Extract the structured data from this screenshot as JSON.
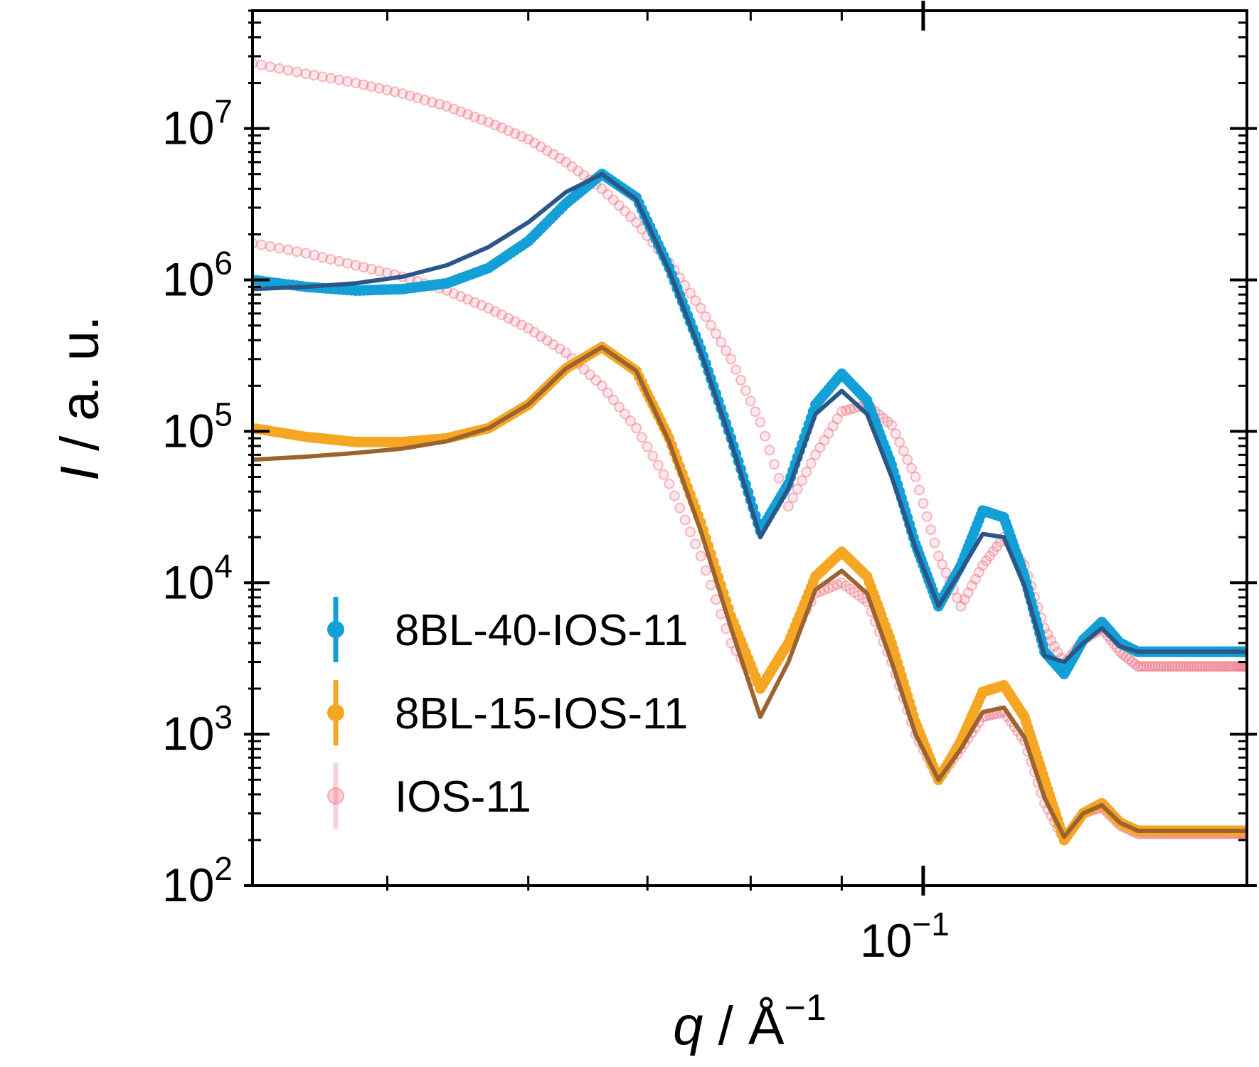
{
  "chart_data": {
    "type": "scatter",
    "title": "",
    "xlabel": "q / Å⁻¹",
    "xlabel_var": "q",
    "xlabel_unit": "Å",
    "xlabel_exp": "−1",
    "ylabel": "I / a. u.",
    "ylabel_var": "I",
    "ylabel_unit": "a. u.",
    "xscale": "log",
    "yscale": "log",
    "xlim": [
      0.042,
      0.152
    ],
    "ylim": [
      100,
      60000000
    ],
    "x_ticks": [
      {
        "value": 0.1,
        "base": "10",
        "exp": "−1"
      }
    ],
    "y_ticks": [
      {
        "value": 100,
        "base": "10",
        "exp": "2"
      },
      {
        "value": 1000,
        "base": "10",
        "exp": "3"
      },
      {
        "value": 10000,
        "base": "10",
        "exp": "4"
      },
      {
        "value": 100000,
        "base": "10",
        "exp": "5"
      },
      {
        "value": 1000000,
        "base": "10",
        "exp": "6"
      },
      {
        "value": 10000000,
        "base": "10",
        "exp": "7"
      }
    ],
    "grid": false,
    "legend_position": "lower-left",
    "series": [
      {
        "name": "IOS-11",
        "kind": "data",
        "color": "#f0788a",
        "marker": "open-circle",
        "x": [
          0.042,
          0.045,
          0.048,
          0.051,
          0.054,
          0.057,
          0.06,
          0.063,
          0.066,
          0.069,
          0.072,
          0.075,
          0.078,
          0.081,
          0.084,
          0.087,
          0.09,
          0.093,
          0.096,
          0.099,
          0.102,
          0.105,
          0.108,
          0.111,
          0.114,
          0.117,
          0.12,
          0.123,
          0.126,
          0.129,
          0.132,
          0.135,
          0.138,
          0.141,
          0.144,
          0.147,
          0.15,
          0.152
        ],
        "y": [
          27000000,
          23000000,
          20000000,
          17000000,
          14000000,
          11000000,
          8500000,
          6000000,
          4000000,
          2400000,
          1300000,
          650000,
          300000,
          115000,
          32000,
          70000,
          135000,
          150000,
          110000,
          50000,
          15000,
          7000,
          13000,
          20000,
          13000,
          5000,
          2900,
          4200,
          5000,
          3500,
          2800,
          2800,
          2800,
          2800,
          2800,
          2800,
          2800,
          2800
        ]
      },
      {
        "name": "IOS-11 (lower)",
        "kind": "data",
        "color": "#f0788a",
        "marker": "open-circle",
        "x": [
          0.042,
          0.045,
          0.048,
          0.051,
          0.054,
          0.057,
          0.06,
          0.063,
          0.066,
          0.069,
          0.072,
          0.075,
          0.078,
          0.081,
          0.084,
          0.087,
          0.09,
          0.093,
          0.096,
          0.099,
          0.102,
          0.105,
          0.108,
          0.111,
          0.114,
          0.117,
          0.12,
          0.123,
          0.126,
          0.129,
          0.132,
          0.135,
          0.138,
          0.141,
          0.144,
          0.147,
          0.15,
          0.152
        ],
        "y": [
          1750000,
          1500000,
          1250000,
          1050000,
          850000,
          650000,
          480000,
          330000,
          200000,
          105000,
          45000,
          15000,
          4000,
          2000,
          4000,
          8500,
          10000,
          7500,
          3000,
          1000,
          500,
          800,
          1300,
          1400,
          900,
          350,
          200,
          300,
          330,
          250,
          220,
          220,
          220,
          220,
          220,
          220,
          220,
          220
        ]
      },
      {
        "name": "8BL-40-IOS-11",
        "kind": "data",
        "color": "#12a0d6",
        "marker": "filled-circle",
        "x": [
          0.042,
          0.045,
          0.048,
          0.051,
          0.054,
          0.057,
          0.06,
          0.063,
          0.066,
          0.069,
          0.072,
          0.075,
          0.078,
          0.081,
          0.084,
          0.087,
          0.09,
          0.093,
          0.096,
          0.099,
          0.102,
          0.105,
          0.108,
          0.111,
          0.114,
          0.117,
          0.12,
          0.123,
          0.126,
          0.129,
          0.132,
          0.135,
          0.138,
          0.141,
          0.144,
          0.147,
          0.15,
          0.152
        ],
        "y": [
          1000000,
          900000,
          850000,
          870000,
          950000,
          1200000,
          1800000,
          3200000,
          5000000,
          3500000,
          1200000,
          350000,
          90000,
          22000,
          45000,
          150000,
          240000,
          160000,
          60000,
          18000,
          7000,
          13000,
          30000,
          27000,
          11000,
          3500,
          2500,
          4200,
          5500,
          4000,
          3500,
          3500,
          3500,
          3500,
          3500,
          3500,
          3500,
          3500
        ]
      },
      {
        "name": "8BL-15-IOS-11",
        "kind": "data",
        "color": "#f5a623",
        "marker": "filled-circle",
        "x": [
          0.042,
          0.045,
          0.048,
          0.051,
          0.054,
          0.057,
          0.06,
          0.063,
          0.066,
          0.069,
          0.072,
          0.075,
          0.078,
          0.081,
          0.084,
          0.087,
          0.09,
          0.093,
          0.096,
          0.099,
          0.102,
          0.105,
          0.108,
          0.111,
          0.114,
          0.117,
          0.12,
          0.123,
          0.126,
          0.129,
          0.132,
          0.135,
          0.138,
          0.141,
          0.144,
          0.147,
          0.15,
          0.152
        ],
        "y": [
          105000,
          92000,
          85000,
          85000,
          90000,
          105000,
          150000,
          260000,
          360000,
          250000,
          90000,
          25000,
          6000,
          2000,
          4000,
          11000,
          16000,
          11000,
          4000,
          1200,
          500,
          900,
          1900,
          2100,
          1300,
          500,
          200,
          300,
          350,
          260,
          230,
          230,
          230,
          230,
          230,
          230,
          230,
          230
        ]
      },
      {
        "name": "fit 8BL-40-IOS-11",
        "kind": "fit",
        "color": "#2a5788",
        "x": [
          0.042,
          0.045,
          0.048,
          0.051,
          0.054,
          0.057,
          0.06,
          0.063,
          0.066,
          0.069,
          0.072,
          0.075,
          0.078,
          0.081,
          0.084,
          0.087,
          0.09,
          0.093,
          0.096,
          0.099,
          0.102,
          0.105,
          0.108,
          0.111,
          0.114,
          0.117,
          0.12,
          0.123,
          0.126,
          0.129,
          0.132,
          0.135,
          0.138,
          0.141,
          0.144,
          0.147,
          0.15,
          0.152
        ],
        "y": [
          870000,
          900000,
          950000,
          1050000,
          1250000,
          1650000,
          2400000,
          3800000,
          5000000,
          3400000,
          1150000,
          330000,
          85000,
          20000,
          42000,
          130000,
          185000,
          130000,
          50000,
          17000,
          7000,
          12000,
          21000,
          20000,
          9500,
          3300,
          3000,
          4000,
          5000,
          3800,
          3500,
          3500,
          3500,
          3500,
          3500,
          3500,
          3500,
          3500
        ]
      },
      {
        "name": "fit 8BL-15-IOS-11",
        "kind": "fit",
        "color": "#9c6330",
        "x": [
          0.042,
          0.045,
          0.048,
          0.051,
          0.054,
          0.057,
          0.06,
          0.063,
          0.066,
          0.069,
          0.072,
          0.075,
          0.078,
          0.081,
          0.084,
          0.087,
          0.09,
          0.093,
          0.096,
          0.099,
          0.102,
          0.105,
          0.108,
          0.111,
          0.114,
          0.117,
          0.12,
          0.123,
          0.126,
          0.129,
          0.132,
          0.135,
          0.138,
          0.141,
          0.144,
          0.147,
          0.15,
          0.152
        ],
        "y": [
          65000,
          68000,
          72000,
          77000,
          86000,
          105000,
          150000,
          260000,
          360000,
          250000,
          85000,
          22000,
          5000,
          1300,
          3000,
          9000,
          12000,
          8500,
          3000,
          1000,
          500,
          800,
          1400,
          1500,
          950,
          380,
          210,
          300,
          340,
          260,
          230,
          230,
          230,
          230,
          230,
          230,
          230,
          230
        ]
      }
    ],
    "legend": [
      {
        "label": "8BL-40-IOS-11",
        "color": "#12a0d6",
        "alpha": 1.0
      },
      {
        "label": "8BL-15-IOS-11",
        "color": "#f5a623",
        "alpha": 1.0
      },
      {
        "label": "IOS-11",
        "color": "#f0788a",
        "alpha": 0.35
      }
    ]
  }
}
